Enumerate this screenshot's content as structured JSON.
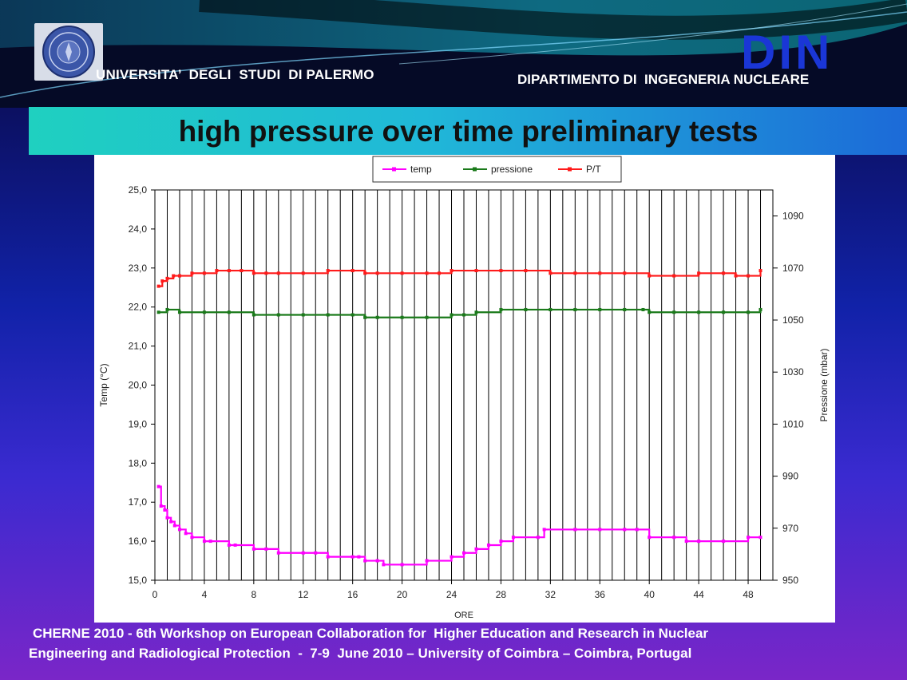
{
  "header": {
    "university": "UNIVERSITA’  DEGLI  STUDI  DI PALERMO",
    "din_logo": "DIN",
    "department": "DIPARTIMENTO DI  INGEGNERIA NUCLEARE",
    "seal_icon": "university-seal-icon"
  },
  "title": "high pressure over time preliminary tests",
  "footer": {
    "line1": "CHERNE 2010 - 6th Workshop on European Collaboration for  Higher Education and Research in Nuclear",
    "line2": "Engineering and Radiological Protection  -  7-9  June 2010 – University of Coimbra – Coimbra, Portugal"
  },
  "colors": {
    "temp": "#ff00ff",
    "pressione": "#1a7a1a",
    "pt": "#ff1a1a",
    "accent": "#1a36d6"
  },
  "chart_data": {
    "type": "line",
    "title": "",
    "xlabel": "ORE",
    "ylabel": "Temp (°C)",
    "y2label": "Pressione (mbar)",
    "xlim": [
      0,
      50
    ],
    "ylim": [
      15,
      25
    ],
    "y2lim": [
      950,
      1100
    ],
    "x_ticks": [
      "0",
      "4",
      "8",
      "12",
      "16",
      "20",
      "24",
      "28",
      "32",
      "36",
      "40",
      "44",
      "48"
    ],
    "y_ticks": [
      "15,0",
      "16,0",
      "17,0",
      "18,0",
      "19,0",
      "20,0",
      "21,0",
      "22,0",
      "23,0",
      "24,0",
      "25,0"
    ],
    "y2_ticks": [
      "950",
      "970",
      "990",
      "1010",
      "1030",
      "1050",
      "1070",
      "1090"
    ],
    "grid": "vertical",
    "legend": "top",
    "series": [
      {
        "name": "temp",
        "axis": "left",
        "x": [
          0.3,
          0.5,
          0.8,
          1.0,
          1.3,
          1.6,
          2,
          2.5,
          3,
          4,
          4.5,
          6,
          6.5,
          8,
          9,
          10,
          12,
          13,
          14,
          16,
          16.5,
          17,
          18,
          18.5,
          20,
          22,
          24,
          25,
          26,
          27,
          28,
          29,
          31,
          31.5,
          34,
          36,
          38,
          39,
          40,
          42,
          43,
          44,
          46,
          48,
          49
        ],
        "values": [
          17.4,
          16.9,
          16.8,
          16.6,
          16.5,
          16.4,
          16.3,
          16.2,
          16.1,
          16.0,
          16.0,
          15.9,
          15.9,
          15.8,
          15.8,
          15.7,
          15.7,
          15.7,
          15.6,
          15.6,
          15.6,
          15.5,
          15.5,
          15.4,
          15.4,
          15.5,
          15.6,
          15.7,
          15.8,
          15.9,
          16.0,
          16.1,
          16.1,
          16.3,
          16.3,
          16.3,
          16.3,
          16.3,
          16.1,
          16.1,
          16.0,
          16.0,
          16.0,
          16.1,
          16.1
        ]
      },
      {
        "name": "pressione",
        "axis": "right",
        "x": [
          0.3,
          1,
          2,
          4,
          6,
          8,
          10,
          12,
          14,
          16,
          17,
          18,
          20,
          22,
          24,
          25,
          26,
          28,
          30,
          32,
          34,
          36,
          38,
          39.5,
          40,
          42,
          44,
          46,
          48,
          49
        ],
        "values": [
          1053,
          1054,
          1053,
          1053,
          1053,
          1052,
          1052,
          1052,
          1052,
          1052,
          1051,
          1051,
          1051,
          1051,
          1052,
          1052,
          1053,
          1054,
          1054,
          1054,
          1054,
          1054,
          1054,
          1054,
          1053,
          1053,
          1053,
          1053,
          1053,
          1054
        ]
      },
      {
        "name": "P/T",
        "axis": "right",
        "x": [
          0.3,
          0.6,
          1,
          1.5,
          2,
          3,
          4,
          5,
          6,
          7,
          8,
          9,
          10,
          12,
          14,
          16,
          17,
          18,
          20,
          22,
          23,
          24,
          26,
          28,
          30,
          32,
          34,
          36,
          38,
          40,
          42,
          44,
          46,
          47,
          48,
          49
        ],
        "values": [
          1063,
          1065,
          1066,
          1067,
          1067,
          1068,
          1068,
          1069,
          1069,
          1069,
          1068,
          1068,
          1068,
          1068,
          1069,
          1069,
          1068,
          1068,
          1068,
          1068,
          1068,
          1069,
          1069,
          1069,
          1069,
          1068,
          1068,
          1068,
          1068,
          1067,
          1067,
          1068,
          1068,
          1067,
          1067,
          1069
        ]
      }
    ]
  }
}
